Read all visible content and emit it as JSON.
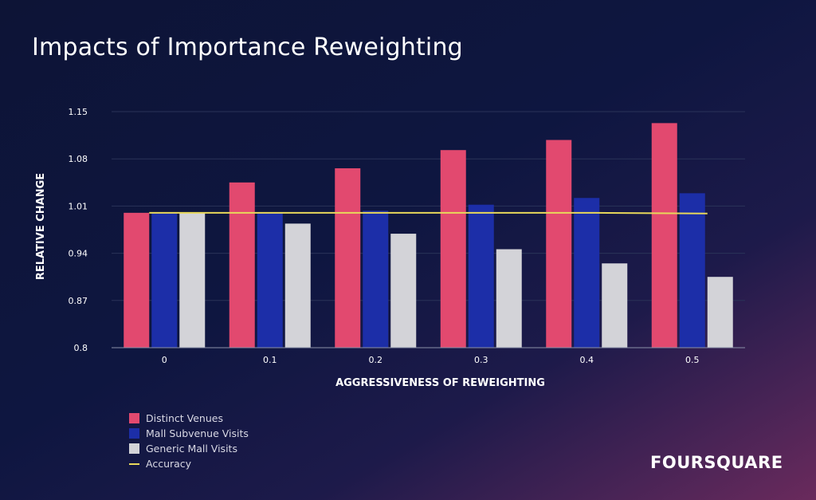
{
  "slide": {
    "title": "Impacts of Importance Reweighting",
    "brand": "FOURSQUARE"
  },
  "colors": {
    "series": [
      "#e2496f",
      "#1c2ea8",
      "#d3d3d8"
    ],
    "accuracy": "#e8d85a",
    "grid": "#2a3358",
    "axis": "#8a90a8"
  },
  "chart_data": {
    "type": "bar",
    "title": "Impacts of Importance Reweighting",
    "xlabel": "AGGRESSIVENESS OF REWEIGHTING",
    "ylabel": "RELATIVE CHANGE",
    "ylim": [
      0.8,
      1.15
    ],
    "yticks": [
      "0.8",
      "0.87",
      "0.94",
      "1.01",
      "1.08",
      "1.15"
    ],
    "categories": [
      "0",
      "0.1",
      "0.2",
      "0.3",
      "0.4",
      "0.5"
    ],
    "series": [
      {
        "name": "Distinct Venues",
        "values": [
          1.0,
          1.045,
          1.066,
          1.093,
          1.108,
          1.133
        ]
      },
      {
        "name": "Mall Subvenue Visits",
        "values": [
          1.0,
          1.0,
          1.003,
          1.012,
          1.022,
          1.029
        ]
      },
      {
        "name": "Generic Mall Visits",
        "values": [
          1.0,
          0.984,
          0.969,
          0.946,
          0.925,
          0.905
        ]
      }
    ],
    "line_series": {
      "name": "Accuracy",
      "values": [
        1.0,
        1.0,
        1.0,
        1.0,
        1.0,
        0.999
      ]
    },
    "legend": [
      "Distinct Venues",
      "Mall Subvenue Visits",
      "Generic Mall Visits",
      "Accuracy"
    ],
    "legend_position": "bottom-left",
    "grid": true
  }
}
